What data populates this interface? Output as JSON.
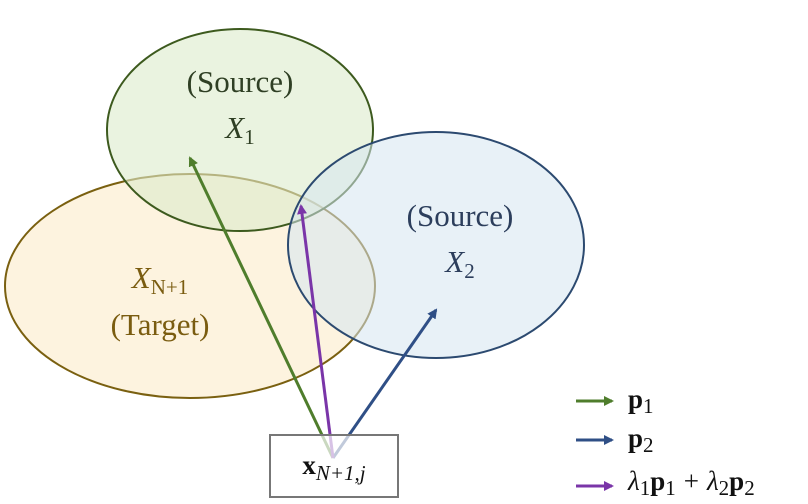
{
  "sets": [
    {
      "role": "(Source)",
      "symbol": "X",
      "index": "1"
    },
    {
      "role": "(Source)",
      "symbol": "X",
      "index": "2"
    },
    {
      "role": "(Target)",
      "symbol": "X",
      "index": "N+1"
    }
  ],
  "point": {
    "symbol": "x",
    "index": "N+1,j"
  },
  "legend": [
    {
      "symbol": "p",
      "index": "1"
    },
    {
      "symbol": "p",
      "index": "2"
    },
    {
      "terms": [
        {
          "coef": "λ",
          "coef_index": "1",
          "symbol": "p",
          "index": "1"
        },
        {
          "coef": "λ",
          "coef_index": "2",
          "symbol": "p",
          "index": "2"
        }
      ],
      "operator": "+"
    }
  ]
}
